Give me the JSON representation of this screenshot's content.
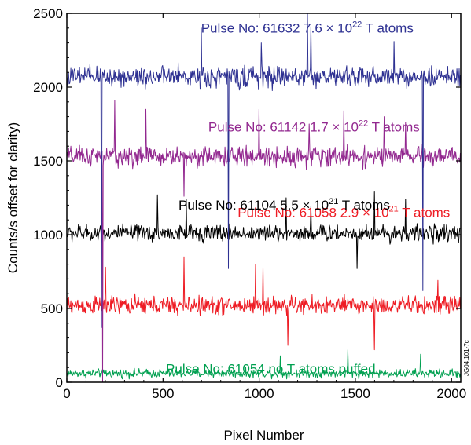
{
  "chart_data": {
    "type": "line",
    "title": "",
    "xlabel": "Pixel Number",
    "ylabel": "Counts/s offset for clarity)",
    "xlim": [
      0,
      2048
    ],
    "ylim": [
      0,
      2500
    ],
    "xticks": [
      0,
      500,
      1000,
      1500,
      2000
    ],
    "yticks": [
      0,
      500,
      1000,
      1500,
      2000,
      2500
    ],
    "xtick_labels": [
      "0",
      "500",
      "1000",
      "1500",
      "2000"
    ],
    "ytick_labels": [
      "0",
      "500",
      "1000",
      "1500",
      "2000",
      "2500"
    ],
    "grid": false,
    "legend": "none (series identified by inline annotations)",
    "series": [
      {
        "name": "Pulse No: 61054  no T atoms puffed",
        "color": "#00a050",
        "baseline": 60,
        "noise": 30,
        "spikes": [
          [
            1460,
            160
          ],
          [
            1110,
            120
          ],
          [
            1840,
            130
          ]
        ],
        "label_parts": [
          "Pulse No: 61054  no T atoms puffed"
        ],
        "label_pos": [
          1060,
          60
        ]
      },
      {
        "name": "Pulse No: 61058  2.9 × 10^21 T atoms",
        "color": "#ee1c24",
        "baseline": 520,
        "noise": 65,
        "spikes": [
          [
            200,
            260
          ],
          [
            1150,
            -270
          ],
          [
            980,
            280
          ],
          [
            610,
            330
          ],
          [
            1600,
            -300
          ],
          [
            1930,
            170
          ],
          [
            1020,
            260
          ]
        ],
        "label_parts": [
          "Pulse No: 61058  2.9 × 10",
          "21",
          " T atoms"
        ],
        "label_pos": [
          1440,
          1120
        ]
      },
      {
        "name": "Pulse No: 61104  5.5 × 10^21 T atoms",
        "color": "#000000",
        "baseline": 1010,
        "noise": 60,
        "spikes": [
          [
            470,
            260
          ],
          [
            620,
            230
          ],
          [
            1600,
            280
          ],
          [
            1270,
            180
          ],
          [
            1760,
            230
          ],
          [
            1140,
            240
          ],
          [
            1510,
            -240
          ]
        ],
        "label_parts": [
          "Pulse No: 61104  5.5 × 10",
          "21",
          " T atoms"
        ],
        "label_pos": [
          1130,
          1170
        ]
      },
      {
        "name": "Pulse No: 61142  1.7 × 10^22 T atoms",
        "color": "#92278f",
        "baseline": 1530,
        "noise": 70,
        "spikes": [
          [
            185,
            -1530
          ],
          [
            250,
            380
          ],
          [
            410,
            320
          ],
          [
            1000,
            320
          ],
          [
            1440,
            310
          ],
          [
            1650,
            270
          ],
          [
            1760,
            230
          ],
          [
            1260,
            220
          ],
          [
            610,
            -270
          ]
        ],
        "label_parts": [
          "Pulse No: 61142  1.7 × 10",
          "22",
          " T atoms"
        ],
        "label_pos": [
          1285,
          1700
        ]
      },
      {
        "name": "Pulse No: 61632  7.6 × 10^22 T atoms",
        "color": "#2e3192",
        "baseline": 2070,
        "noise": 75,
        "spikes": [
          [
            180,
            -1700
          ],
          [
            1250,
            430
          ],
          [
            700,
            330
          ],
          [
            1270,
            340
          ],
          [
            1700,
            240
          ],
          [
            1850,
            -1450
          ],
          [
            840,
            -1300
          ],
          [
            1010,
            230
          ]
        ],
        "label_parts": [
          "Pulse No: 61632  7.6 × 10",
          "22",
          " T atoms"
        ],
        "label_pos": [
          1250,
          2370
        ]
      }
    ]
  },
  "watermark": {
    "text": "JG04.101-7c"
  }
}
